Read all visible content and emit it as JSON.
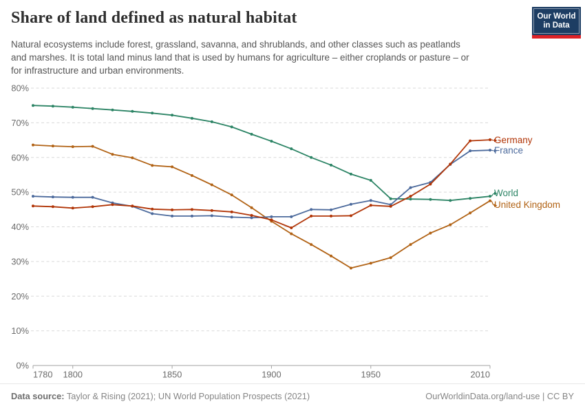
{
  "header": {
    "title": "Share of land defined as natural habitat",
    "subtitle_lines": [
      "Natural ecosystems include forest, grassland, savanna, and shrublands, and other classes such as peatlands",
      "and marshes. It is total land minus land that is used by humans for agriculture – either croplands or pasture – or",
      "for infrastructure and urban environments."
    ]
  },
  "logo": {
    "line1": "Our World",
    "line2": "in Data"
  },
  "footer": {
    "source_label": "Data source:",
    "source_text": "Taylor & Rising (2021); UN World Population Prospects (2021)",
    "attribution": "OurWorldinData.org/land-use | CC BY"
  },
  "colors": {
    "world": "#2C8465",
    "united_kingdom": "#B16214",
    "france": "#4C6A9C",
    "germany": "#B13507",
    "grid": "#d9d9d9",
    "axis": "#a3a3a3",
    "tick_text": "#6b6b6b"
  },
  "chart_data": {
    "type": "line",
    "title": "Share of land defined as natural habitat",
    "xlabel": "",
    "ylabel": "",
    "x": [
      1780,
      1790,
      1800,
      1810,
      1820,
      1830,
      1840,
      1850,
      1860,
      1870,
      1880,
      1890,
      1900,
      1910,
      1920,
      1930,
      1940,
      1950,
      1960,
      1970,
      1980,
      1990,
      2000,
      2010
    ],
    "series": [
      {
        "name": "World",
        "color": "#2C8465",
        "values": [
          75.0,
          74.8,
          74.5,
          74.1,
          73.7,
          73.3,
          72.8,
          72.2,
          71.3,
          70.3,
          68.8,
          66.7,
          64.7,
          62.5,
          60.0,
          57.8,
          55.2,
          53.4,
          48.1,
          48.0,
          47.9,
          47.6,
          48.2,
          48.8
        ]
      },
      {
        "name": "United Kingdom",
        "color": "#B16214",
        "values": [
          63.6,
          63.3,
          63.1,
          63.2,
          60.9,
          59.9,
          57.7,
          57.3,
          54.8,
          52.1,
          49.2,
          45.5,
          41.6,
          38.0,
          34.9,
          31.6,
          28.1,
          29.5,
          31.1,
          34.9,
          38.2,
          40.6,
          44.0,
          47.5
        ]
      },
      {
        "name": "France",
        "color": "#4C6A9C",
        "values": [
          48.8,
          48.6,
          48.5,
          48.5,
          46.9,
          45.9,
          43.8,
          43.1,
          43.1,
          43.2,
          42.8,
          42.6,
          42.9,
          42.9,
          45.0,
          44.9,
          46.5,
          47.6,
          46.4,
          51.3,
          52.8,
          58.0,
          61.9,
          62.1
        ]
      },
      {
        "name": "Germany",
        "color": "#B13507",
        "values": [
          46.0,
          45.8,
          45.4,
          45.8,
          46.4,
          46.0,
          45.1,
          44.9,
          45.0,
          44.7,
          44.3,
          43.3,
          42.0,
          39.7,
          43.1,
          43.1,
          43.2,
          46.2,
          45.9,
          48.8,
          52.3,
          58.1,
          64.8,
          65.1
        ]
      }
    ],
    "xlim": [
      1780,
      2010
    ],
    "ylim": [
      0,
      80
    ],
    "xticks": [
      1780,
      1800,
      1850,
      1900,
      1950,
      2010
    ],
    "yticks": [
      0,
      10,
      20,
      30,
      40,
      50,
      60,
      70,
      80
    ],
    "ytick_suffix": "%",
    "grid": "horizontal-dashed",
    "legend_position": "end-of-line-labels-right"
  }
}
